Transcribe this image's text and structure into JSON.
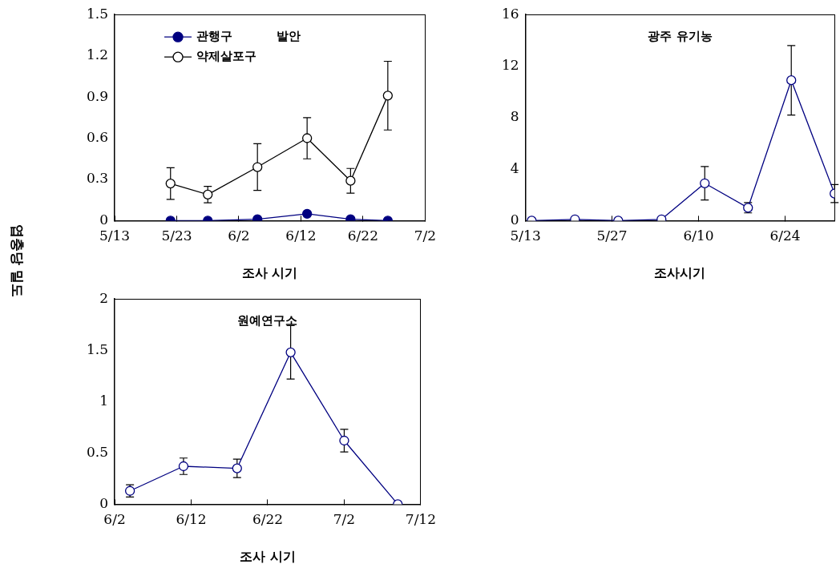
{
  "chart_data": [
    {
      "type": "line",
      "title": "발안",
      "xlabel": "조사 시기",
      "ylabel": "엽충당 밀도",
      "marker": "circle",
      "legend": "top left",
      "grid": false,
      "x": [
        "--05-22",
        "--05-28",
        "--06-05",
        "--06-13",
        "--06-20",
        "--06-26"
      ],
      "xlim": [
        "--05-13",
        "--07-02"
      ],
      "xticks": [
        {
          "value": "--05-13",
          "label": "5/13"
        },
        {
          "value": "--05-23",
          "label": "5/23"
        },
        {
          "value": "--06-02",
          "label": "6/2"
        },
        {
          "value": "--06-12",
          "label": "6/12"
        },
        {
          "value": "--06-22",
          "label": "6/22"
        },
        {
          "value": "--07-02",
          "label": "7/2"
        }
      ],
      "ylim": [
        0,
        1.5
      ],
      "yticks": [
        0,
        0.3,
        0.6,
        0.9,
        1.2,
        1.5
      ],
      "series": [
        {
          "name": "관행구",
          "color": "#000080",
          "marker": "circle",
          "values": [
            0,
            0,
            0.01,
            0.05,
            0.01,
            0
          ]
        },
        {
          "name": "약제살포구",
          "color": "#000000",
          "values": [
            0.27,
            0.19,
            0.39,
            0.6,
            0.29,
            0.91
          ],
          "errors": [
            0.115,
            0.06,
            0.17,
            0.15,
            0.09,
            0.25
          ]
        }
      ]
    },
    {
      "type": "line",
      "title": "광주 유기농",
      "xlabel": "조사시기",
      "marker": "circle",
      "grid": false,
      "x": [
        "--05-14",
        "--05-21",
        "--05-28",
        "--06-04",
        "--06-11",
        "--06-18",
        "--06-25",
        "--07-02"
      ],
      "xlim": [
        "--05-13",
        "--07-02"
      ],
      "xticks": [
        {
          "value": "--05-13",
          "label": "5/13"
        },
        {
          "value": "--05-27",
          "label": "5/27"
        },
        {
          "value": "--06-10",
          "label": "6/10"
        },
        {
          "value": "--06-24",
          "label": "6/24"
        }
      ],
      "ylim": [
        0,
        16
      ],
      "yticks": [
        0,
        4,
        8,
        12,
        16
      ],
      "series": [
        {
          "color": "#000080",
          "values": [
            0,
            0.1,
            0,
            0.1,
            2.9,
            1.0,
            10.9,
            2.1
          ],
          "errors": [
            null,
            null,
            null,
            null,
            1.3,
            0.4,
            2.7,
            0.7
          ]
        }
      ]
    },
    {
      "type": "line",
      "title": "원예연구소",
      "xlabel": "조사 시기",
      "marker": "circle",
      "grid": false,
      "x": [
        "--06-04",
        "--06-11",
        "--06-18",
        "--06-25",
        "--07-02",
        "--07-09"
      ],
      "xlim": [
        "--06-02",
        "--07-12"
      ],
      "xticks": [
        {
          "value": "--06-02",
          "label": "6/2"
        },
        {
          "value": "--06-12",
          "label": "6/12"
        },
        {
          "value": "--06-22",
          "label": "6/22"
        },
        {
          "value": "--07-02",
          "label": "7/2"
        },
        {
          "value": "--07-12",
          "label": "7/12"
        }
      ],
      "ylim": [
        0,
        2
      ],
      "yticks": [
        0,
        0.5,
        1,
        1.5,
        2
      ],
      "series": [
        {
          "color": "#000080",
          "values": [
            0.13,
            0.37,
            0.35,
            1.48,
            0.62,
            0
          ],
          "errors": [
            0.06,
            0.08,
            0.09,
            0.26,
            0.11,
            null
          ]
        }
      ]
    }
  ]
}
